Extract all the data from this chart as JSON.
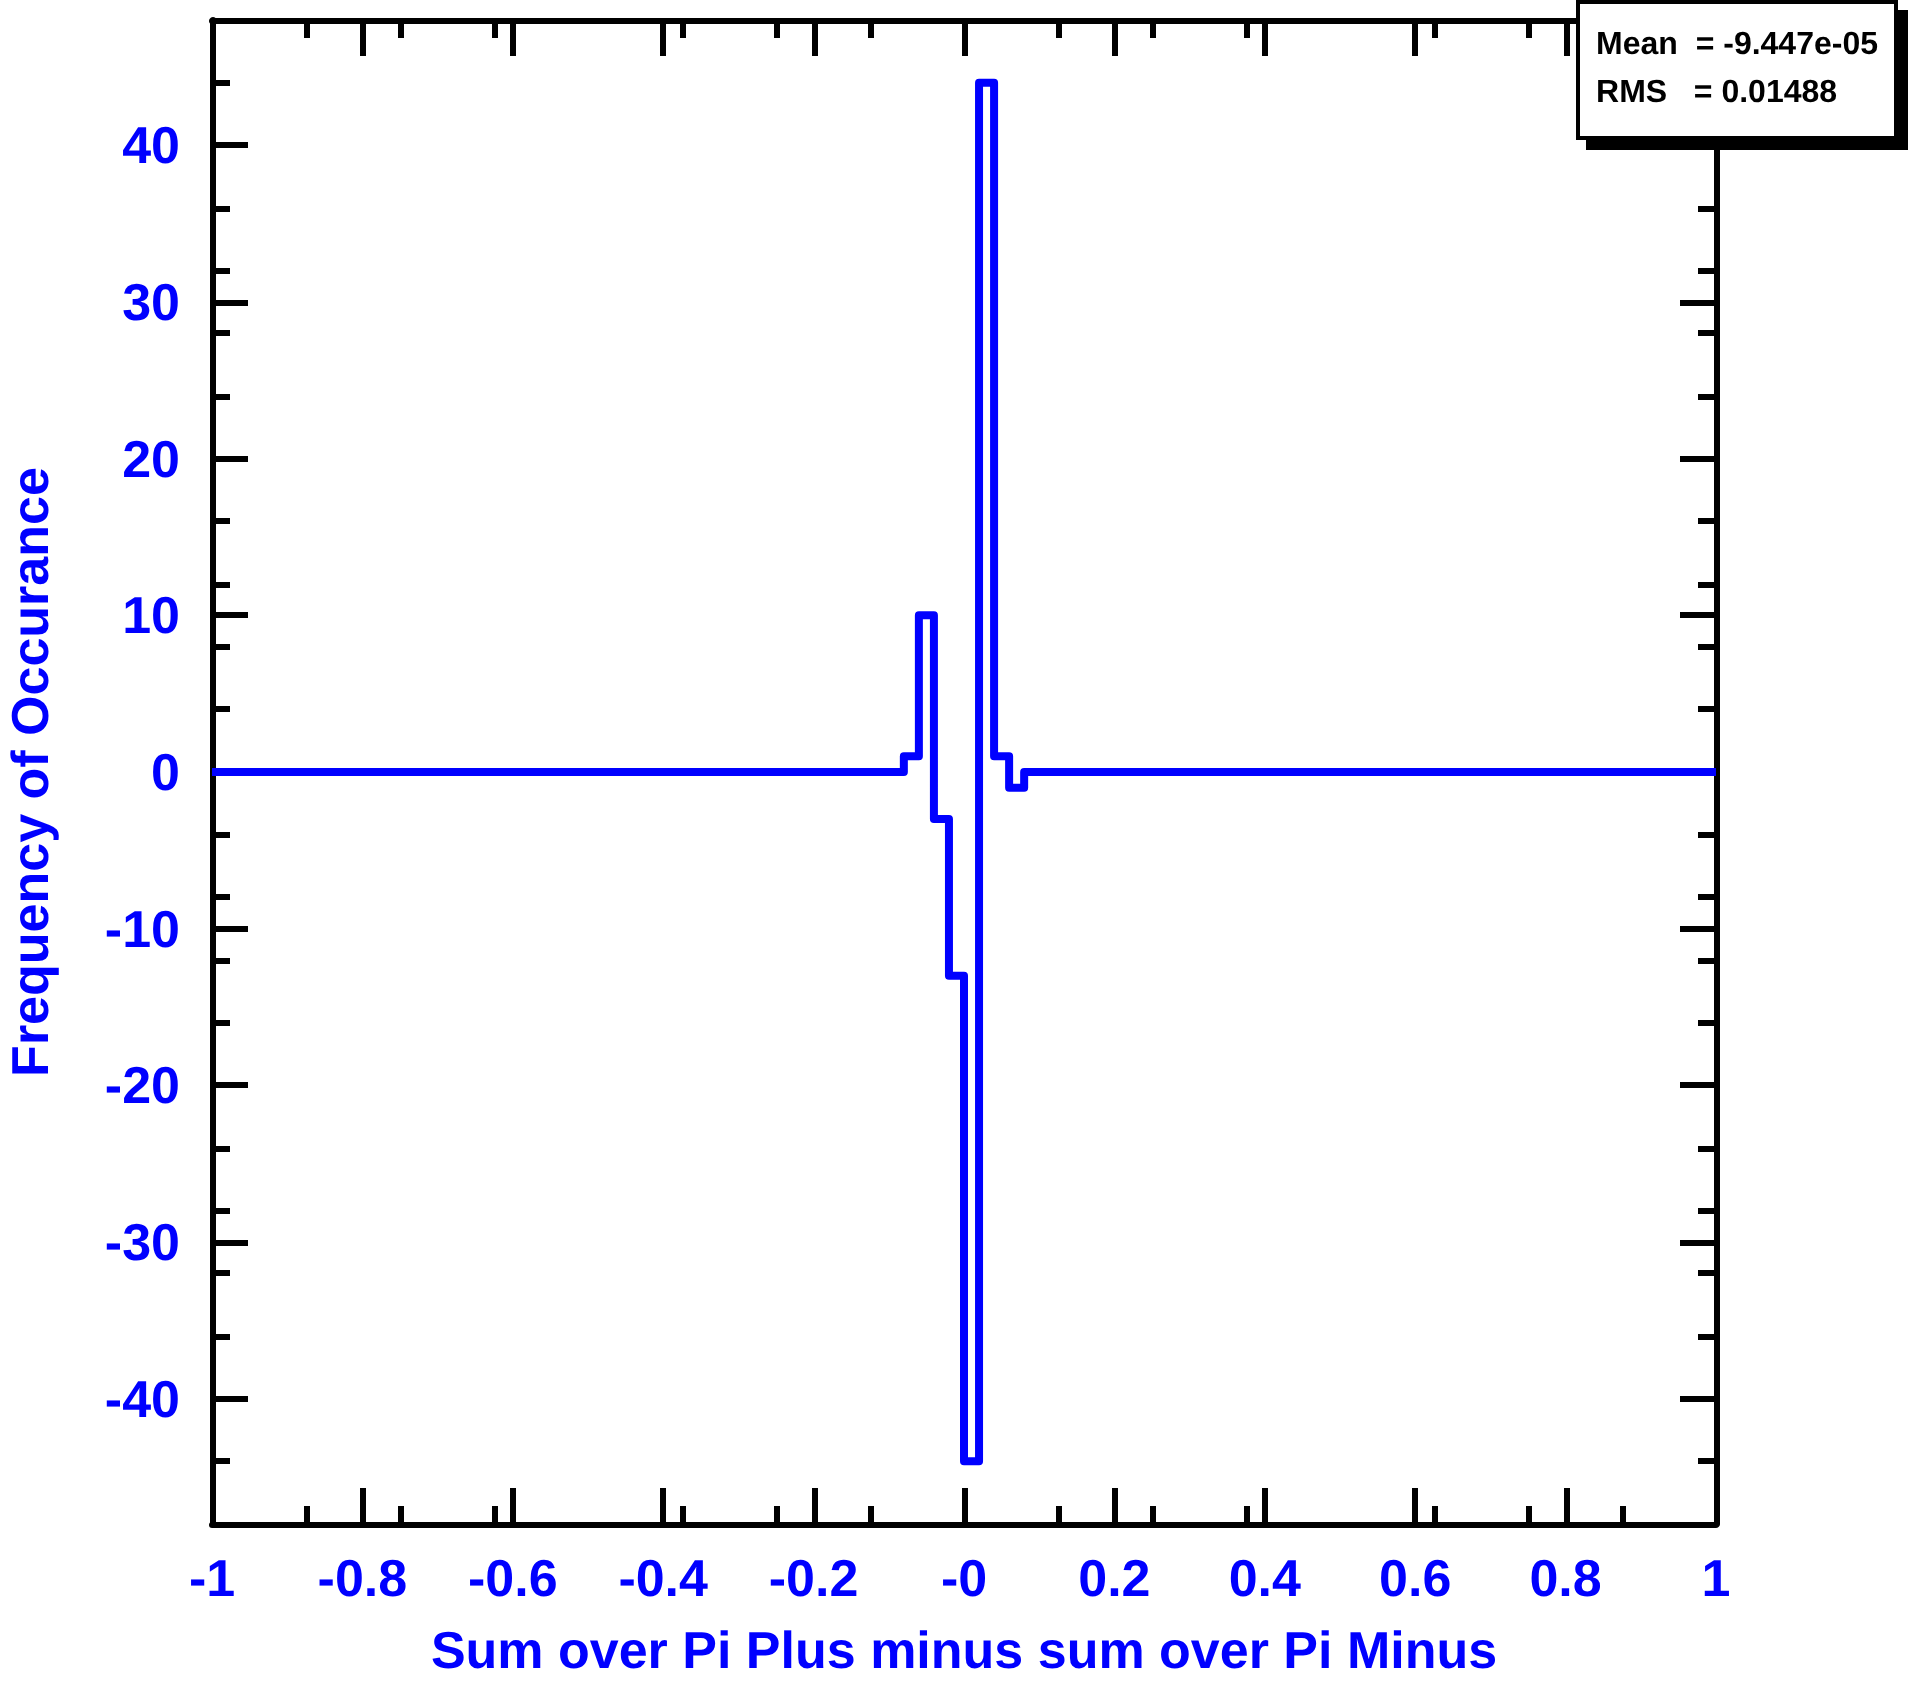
{
  "chart_data": {
    "type": "histogram",
    "xlabel": "Sum over Pi Plus minus sum over Pi Minus",
    "ylabel": "Frequency of Occurance",
    "bins": [
      -1,
      -0.08,
      -0.06,
      -0.04,
      -0.02,
      0,
      0.02,
      0.04,
      0.06,
      0.08,
      1
    ],
    "values": [
      0,
      1,
      10,
      -3,
      -13,
      -44,
      44,
      1,
      -1,
      0
    ],
    "color": "#0000ff",
    "xlim": [
      -1,
      1
    ],
    "xticks": [
      -1,
      -0.8,
      -0.6,
      -0.4,
      -0.2,
      {
        "value": 0,
        "label": "-0"
      },
      0.2,
      0.4,
      0.6,
      0.8,
      1
    ],
    "ylim": [
      -48,
      48
    ],
    "yticks": [
      -40,
      -30,
      -20,
      -10,
      0,
      10,
      20,
      30,
      40
    ],
    "grid": false,
    "annotations": [
      "Mean  = -9.447e-05",
      "RMS   = 0.01488"
    ]
  }
}
